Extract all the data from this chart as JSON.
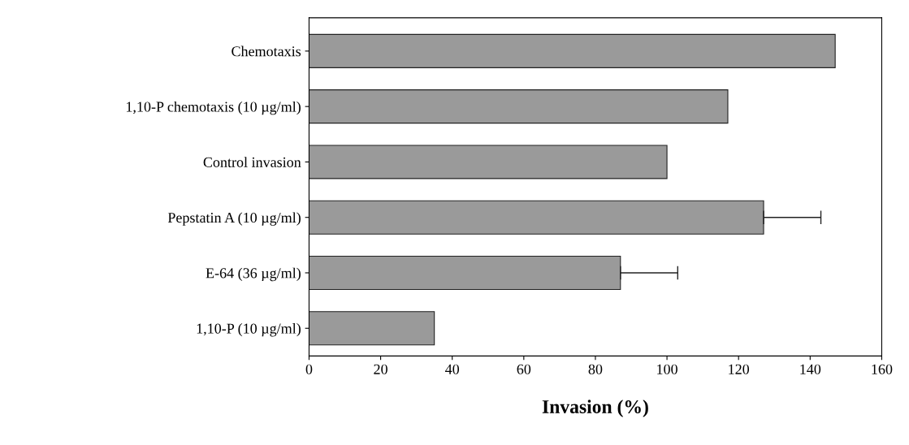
{
  "chart_data": {
    "type": "bar",
    "orientation": "horizontal",
    "xlabel": "Invasion (%)",
    "categories": [
      "Chemotaxis",
      "1,10-P chemotaxis (10 µg/ml)",
      "Control invasion",
      "Pepstatin A (10 µg/ml)",
      "E-64 (36 µg/ml)",
      "1,10-P (10 µg/ml)"
    ],
    "values": [
      147,
      117,
      100,
      127,
      87,
      35
    ],
    "errors": [
      null,
      null,
      null,
      [
        127,
        143
      ],
      [
        87,
        103
      ],
      null
    ],
    "color": "#9a9a9a",
    "xlim": [
      0,
      160
    ],
    "xticks": [
      0,
      20,
      40,
      60,
      80,
      100,
      120,
      140,
      160
    ],
    "grid": false,
    "legend": false
  }
}
